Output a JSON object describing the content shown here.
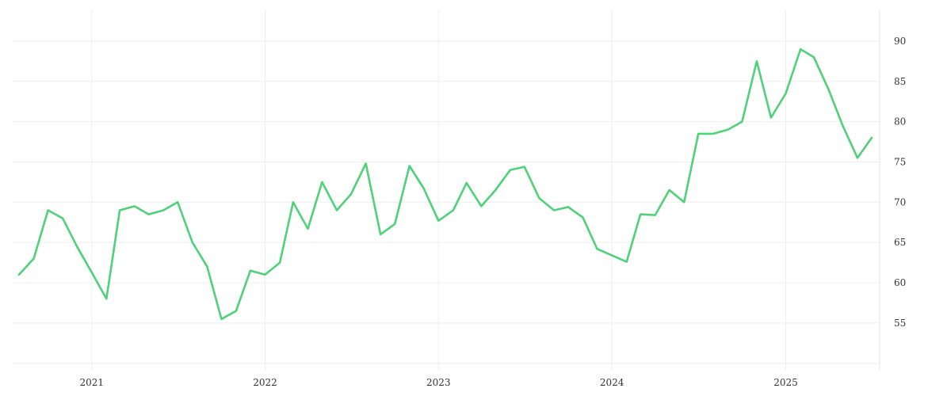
{
  "colors": {
    "series": "#4fd17a",
    "grid": "#eeeeee"
  },
  "chart_data": {
    "type": "line",
    "title": "",
    "xlabel": "",
    "ylabel": "",
    "grid": true,
    "x_range": [
      "2020-08-01",
      "2025-07-01"
    ],
    "ylim": [
      45,
      95
    ],
    "y_ticks": [
      55,
      60,
      65,
      70,
      75,
      80,
      85,
      90
    ],
    "x_tick_labels": [
      "2021",
      "2022",
      "2023",
      "2024",
      "2025"
    ],
    "x": [
      "2020-08",
      "2020-09",
      "2020-10",
      "2020-11",
      "2020-12",
      "2021-01",
      "2021-02",
      "2021-03",
      "2021-04",
      "2021-05",
      "2021-06",
      "2021-07",
      "2021-08",
      "2021-09",
      "2021-10",
      "2021-11",
      "2021-12",
      "2022-01",
      "2022-02",
      "2022-03",
      "2022-04",
      "2022-05",
      "2022-06",
      "2022-07",
      "2022-08",
      "2022-09",
      "2022-10",
      "2022-11",
      "2022-12",
      "2023-01",
      "2023-02",
      "2023-03",
      "2023-04",
      "2023-05",
      "2023-06",
      "2023-07",
      "2023-08",
      "2023-09",
      "2023-10",
      "2023-11",
      "2023-12",
      "2024-01",
      "2024-02",
      "2024-03",
      "2024-04",
      "2024-05",
      "2024-06",
      "2024-07",
      "2024-08",
      "2024-09",
      "2024-10",
      "2024-11",
      "2024-12",
      "2025-01",
      "2025-02",
      "2025-03",
      "2025-04",
      "2025-05",
      "2025-06",
      "2025-07"
    ],
    "series": [
      {
        "values": [
          61.0,
          63.0,
          69.0,
          68.0,
          64.5,
          61.3,
          58.0,
          69.0,
          69.5,
          68.5,
          69.0,
          70.0,
          65.0,
          62.0,
          55.5,
          56.5,
          61.5,
          61.0,
          62.5,
          70.0,
          66.7,
          72.5,
          69.0,
          71.0,
          74.8,
          66.0,
          67.3,
          74.5,
          71.7,
          67.7,
          69.0,
          72.4,
          69.5,
          71.5,
          74.0,
          74.4,
          70.5,
          69.0,
          69.4,
          68.1,
          64.2,
          63.4,
          62.6,
          68.5,
          68.4,
          71.5,
          70.0,
          78.5,
          78.5,
          79.0,
          80.0,
          87.5,
          80.5,
          83.5,
          89.0,
          88.0,
          84.0,
          79.5,
          75.5,
          78.0
        ]
      }
    ]
  }
}
